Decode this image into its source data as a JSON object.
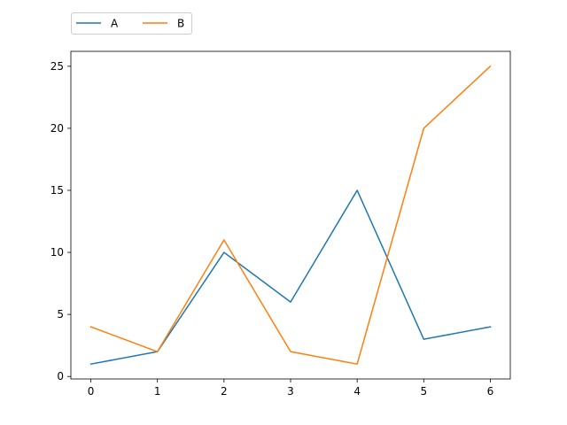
{
  "chart_data": {
    "type": "line",
    "title": "",
    "xlabel": "",
    "ylabel": "",
    "x": [
      0,
      1,
      2,
      3,
      4,
      5,
      6
    ],
    "series": [
      {
        "name": "A",
        "color": "#1f77b4",
        "values": [
          1,
          2,
          10,
          6,
          15,
          3,
          4
        ]
      },
      {
        "name": "B",
        "color": "#ff7f0e",
        "values": [
          4,
          2,
          11,
          2,
          1,
          20,
          25
        ]
      }
    ],
    "xlim": [
      -0.3,
      6.3
    ],
    "ylim": [
      -0.2,
      26.2
    ],
    "xticks": [
      0,
      1,
      2,
      3,
      4,
      5,
      6
    ],
    "yticks": [
      0,
      5,
      10,
      15,
      20,
      25
    ],
    "grid": false,
    "legend": {
      "placement": "top-left, above axes",
      "columns": 2
    }
  }
}
